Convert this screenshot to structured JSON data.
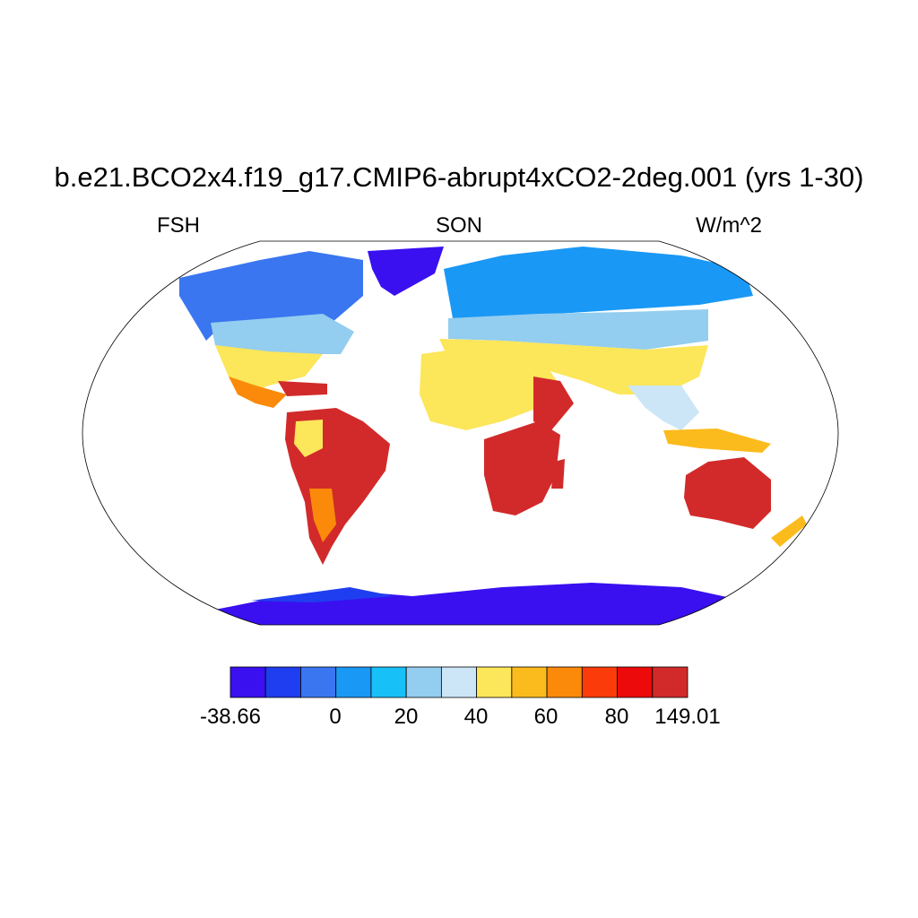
{
  "title": "b.e21.BCO2x4.f19_g17.CMIP6-abrupt4xCO2-2deg.001 (yrs 1-30)",
  "left_label": "FSH",
  "center_label": "SON",
  "right_label": "W/m^2",
  "colorbar": {
    "colors": [
      "#3a10f0",
      "#1f3ef0",
      "#3a76f0",
      "#1a98f5",
      "#18c0f8",
      "#93cdef",
      "#cce6f7",
      "#fce65a",
      "#fcbb1c",
      "#fb8a0a",
      "#fb3c0a",
      "#ec0a0a",
      "#d22a2a"
    ],
    "tick_labels": [
      "-38.66",
      "0",
      "20",
      "40",
      "60",
      "80",
      "149.01"
    ]
  },
  "chart_data": {
    "type": "heatmap",
    "projection": "Robinson",
    "variable": "FSH",
    "season": "SON",
    "units": "W/m^2",
    "range": [
      -38.66,
      149.01
    ]
  }
}
